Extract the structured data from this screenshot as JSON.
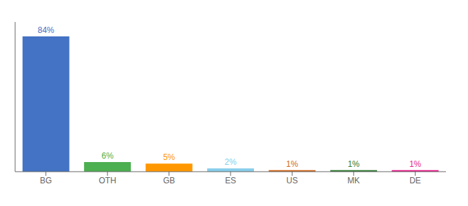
{
  "chart_data": {
    "type": "bar",
    "categories": [
      "BG",
      "OTH",
      "GB",
      "ES",
      "US",
      "MK",
      "DE"
    ],
    "values": [
      84,
      6,
      5,
      2,
      1,
      1,
      1
    ],
    "value_labels": [
      "84%",
      "6%",
      "5%",
      "2%",
      "1%",
      "1%",
      "1%"
    ],
    "colors": [
      "#4472c4",
      "#4caf50",
      "#ff9800",
      "#87ceeb",
      "#d2691e",
      "#2e7d32",
      "#e91e8c"
    ],
    "data_labels": true,
    "ylim": [
      0,
      93
    ],
    "tick_labels": "x",
    "grid": false
  }
}
